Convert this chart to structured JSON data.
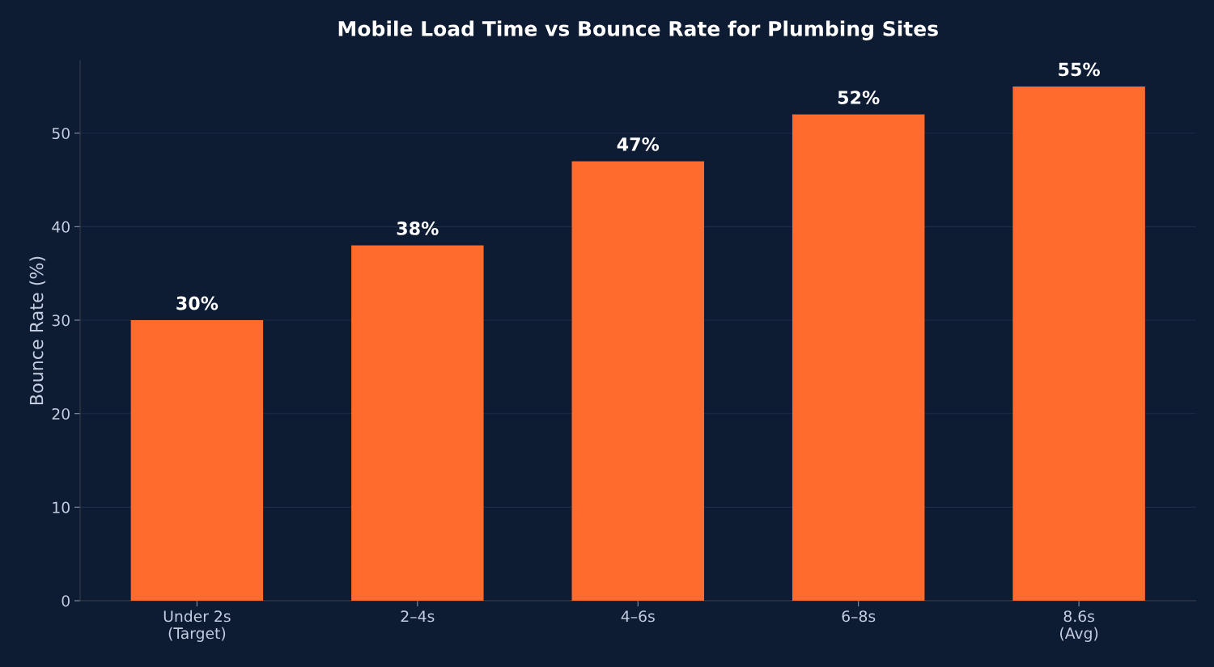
{
  "chart_data": {
    "type": "bar",
    "title": "Mobile Load Time vs Bounce Rate for Plumbing Sites",
    "ylabel": "Bounce Rate (%)",
    "categories": [
      "Under 2s\n(Target)",
      "2–4s",
      "4–6s",
      "6–8s",
      "8.6s\n(Avg)"
    ],
    "values": [
      30,
      38,
      47,
      52,
      55
    ],
    "value_labels": [
      "30%",
      "38%",
      "47%",
      "52%",
      "55%"
    ],
    "color": "#ff6b2c",
    "ylim": [
      0,
      57.75
    ],
    "yticks": [
      0,
      10,
      20,
      30,
      40,
      50
    ],
    "grid": "y",
    "legend": false
  }
}
